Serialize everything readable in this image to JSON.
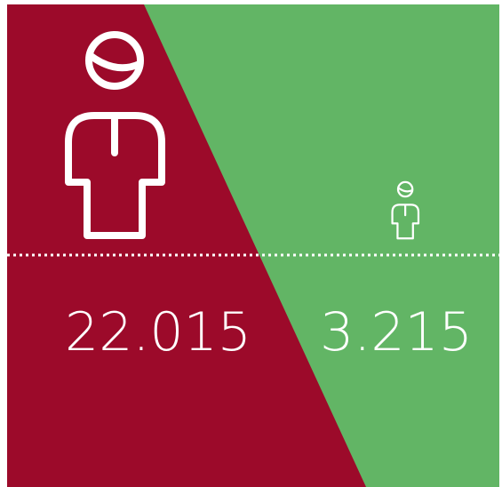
{
  "items": [
    {
      "value": "22.015"
    },
    {
      "value": "3.215"
    }
  ]
}
